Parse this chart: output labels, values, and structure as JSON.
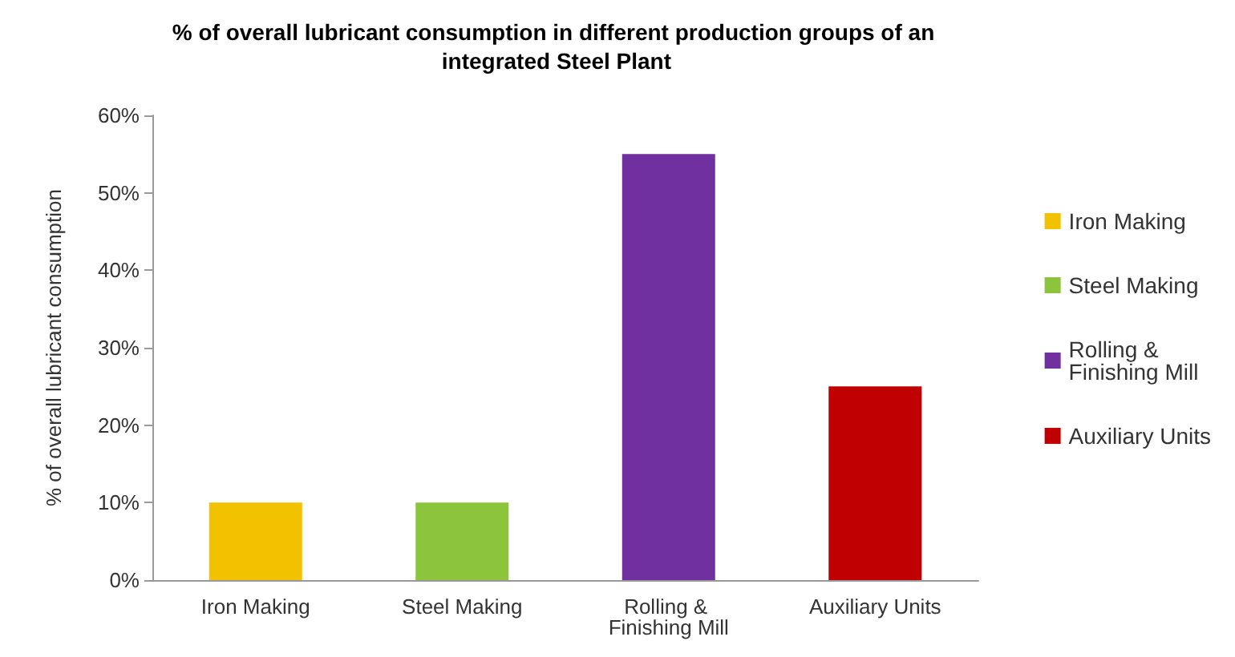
{
  "chart_data": {
    "type": "bar",
    "title": "% of overall lubricant consumption in different production groups of an integrated Steel Plant",
    "ylabel": "% of overall lubricant consumption",
    "categories": [
      "Iron Making",
      "Steel Making",
      "Rolling & Finishing Mill",
      "Auxiliary Units"
    ],
    "series": [
      {
        "name": "Iron Making",
        "color": "#f2c200",
        "values": [
          10,
          null,
          null,
          null
        ]
      },
      {
        "name": "Steel Making",
        "color": "#8cc43c",
        "values": [
          null,
          10,
          null,
          null
        ]
      },
      {
        "name": "Rolling & Finishing Mill",
        "color": "#7030a0",
        "values": [
          null,
          null,
          55,
          null
        ]
      },
      {
        "name": "Auxiliary Units",
        "color": "#c00000",
        "values": [
          null,
          null,
          null,
          25
        ]
      }
    ],
    "ylim": [
      0,
      60
    ],
    "yticks": [
      {
        "value": 0,
        "label": "0%"
      },
      {
        "value": 10,
        "label": "10%"
      },
      {
        "value": 20,
        "label": "20%"
      },
      {
        "value": 30,
        "label": "30%"
      },
      {
        "value": 40,
        "label": "40%"
      },
      {
        "value": 50,
        "label": "50%"
      },
      {
        "value": 60,
        "label": "60%"
      }
    ],
    "grid": false,
    "legend": "right"
  }
}
